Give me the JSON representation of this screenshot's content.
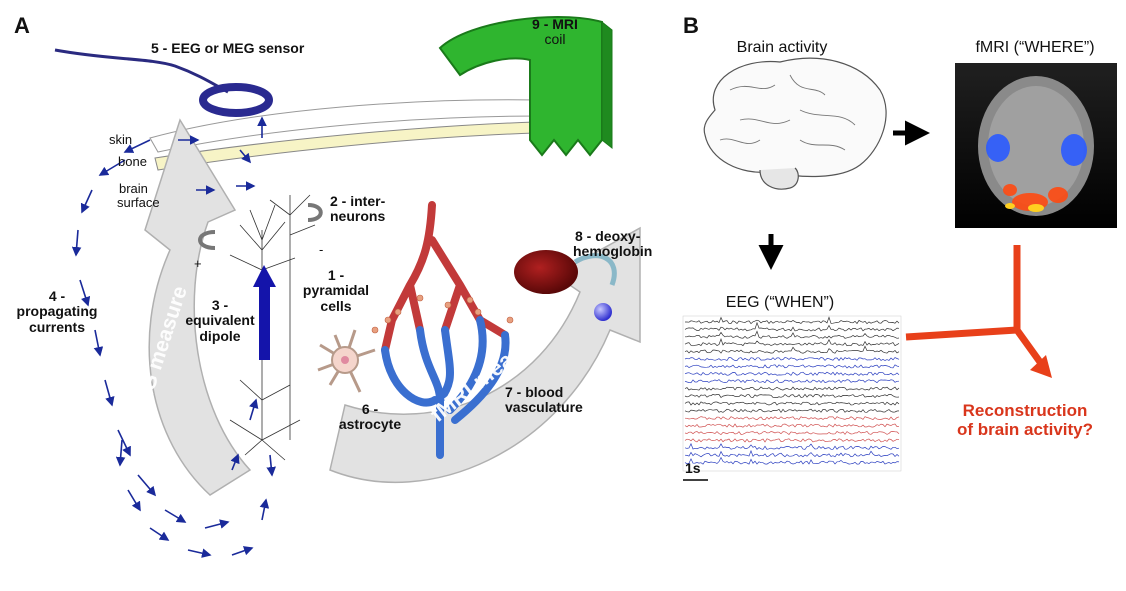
{
  "panels": {
    "a": "A",
    "b": "B"
  },
  "panel_a": {
    "labels": {
      "eeg_sensor": "5 - EEG or MEG sensor",
      "mri_coil_1": "9 - MRI",
      "mri_coil_2": "coil",
      "skin": "skin",
      "bone": "bone",
      "brain_1": "brain",
      "brain_2": "surface",
      "interneurons_1": "2 - inter-",
      "interneurons_2": "neurons",
      "plus": "+",
      "minus": "-",
      "propagating_1": "4 -",
      "propagating_2": "propagating",
      "propagating_3": "currents",
      "dipole_1": "3 -",
      "dipole_2": "equivalent",
      "dipole_3": "dipole",
      "pyramidal_1": "1 -",
      "pyramidal_2": "pyramidal",
      "pyramidal_3": "cells",
      "deoxy_1": "8 - deoxy-",
      "deoxy_2": "hemoglobin",
      "astrocyte_1": "6 -",
      "astrocyte_2": "astrocyte",
      "blood_1": "7 - blood",
      "blood_2": "vasculature",
      "eeg_measure": "EEG measure",
      "fmri_measure": "fMRI measure"
    }
  },
  "panel_b": {
    "brain_activity": "Brain activity",
    "fmri": "fMRI (“WHERE”)",
    "eeg": "EEG (“WHEN”)",
    "scale": "1s",
    "reconstruction_1": "Reconstruction",
    "reconstruction_2": "of brain activity?"
  },
  "colors": {
    "arrow_blue": "#1a2a9a",
    "coil_green": "#2fb52f",
    "vessel_red": "#c23a3a",
    "vessel_blue": "#3a6fd0",
    "accent_red": "#e8401a",
    "eeg_blue": "#2b3fc0",
    "eeg_red": "#d05050"
  }
}
